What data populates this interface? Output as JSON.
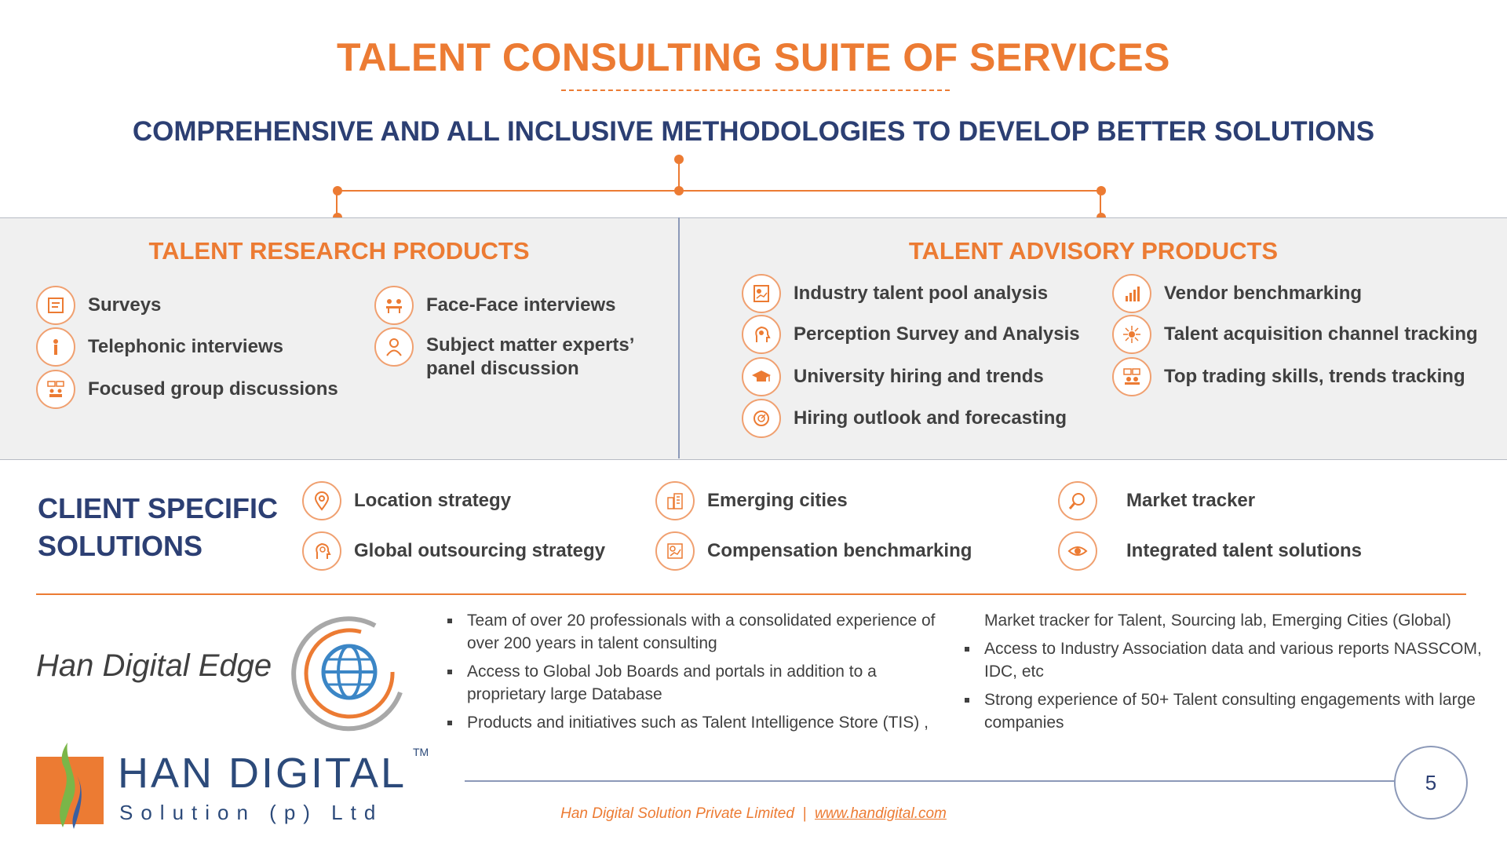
{
  "title": "TALENT CONSULTING SUITE OF SERVICES",
  "subtitle": "COMPREHENSIVE AND ALL INCLUSIVE METHODOLOGIES TO DEVELOP BETTER SOLUTIONS",
  "research": {
    "title": "TALENT RESEARCH PRODUCTS",
    "items": [
      {
        "label": "Surveys",
        "icon": "survey-icon"
      },
      {
        "label": "Telephonic interviews",
        "icon": "phone-person-icon"
      },
      {
        "label": "Focused group discussions",
        "icon": "group-discussion-icon"
      },
      {
        "label": "Face-Face interviews",
        "icon": "meeting-icon"
      },
      {
        "label": "Subject matter experts’ panel discussion",
        "icon": "expert-icon"
      }
    ]
  },
  "advisory": {
    "title": "TALENT ADVISORY PRODUCTS",
    "items": [
      {
        "label": "Industry talent pool analysis",
        "icon": "chart-report-icon"
      },
      {
        "label": "Perception Survey and Analysis",
        "icon": "head-gear-icon"
      },
      {
        "label": "University hiring  and trends",
        "icon": "graduation-cap-icon"
      },
      {
        "label": "Hiring outlook and forecasting",
        "icon": "forecast-icon"
      },
      {
        "label": "Vendor benchmarking",
        "icon": "bar-chart-icon"
      },
      {
        "label": "Talent acquisition channel tracking",
        "icon": "network-icon"
      },
      {
        "label": "Top trading skills, trends tracking",
        "icon": "trends-icon"
      }
    ]
  },
  "client": {
    "title_line1": "CLIENT SPECIFIC",
    "title_line2": "SOLUTIONS",
    "items": [
      {
        "label": "Location strategy",
        "icon": "location-pin-icon"
      },
      {
        "label": "Global outsourcing strategy",
        "icon": "head-idea-icon"
      },
      {
        "label": "Emerging cities",
        "icon": "city-icon"
      },
      {
        "label": "Compensation benchmarking",
        "icon": "compensation-icon"
      },
      {
        "label": "Market tracker",
        "icon": "magnifier-icon"
      },
      {
        "label": "Integrated talent solutions",
        "icon": "eye-icon"
      }
    ]
  },
  "edge": {
    "title": "Han Digital Edge",
    "bullets_left": [
      "Team of over 20 professionals with a consolidated experience of over 200 years in talent consulting",
      "Access to Global Job Boards and portals in addition to a proprietary large Database",
      "Products  and initiatives such as Talent Intelligence Store (TIS) ,"
    ],
    "continuation": "Market tracker for Talent, Sourcing lab, Emerging Cities (Global)",
    "bullets_right": [
      "Access to Industry Association data and various reports NASSCOM, IDC, etc",
      "Strong experience of 50+ Talent consulting engagements with large companies"
    ]
  },
  "logo": {
    "name": "HAN DIGITAL",
    "sub": "Solution (p) Ltd",
    "tm": "TM"
  },
  "footer": {
    "company": "Han Digital Solution Private Limited",
    "separator": "|",
    "url": "www.handigital.com"
  },
  "page_number": "5",
  "colors": {
    "accent": "#ec7b33",
    "navy": "#2c3f73",
    "panel": "#f0f0f0"
  }
}
